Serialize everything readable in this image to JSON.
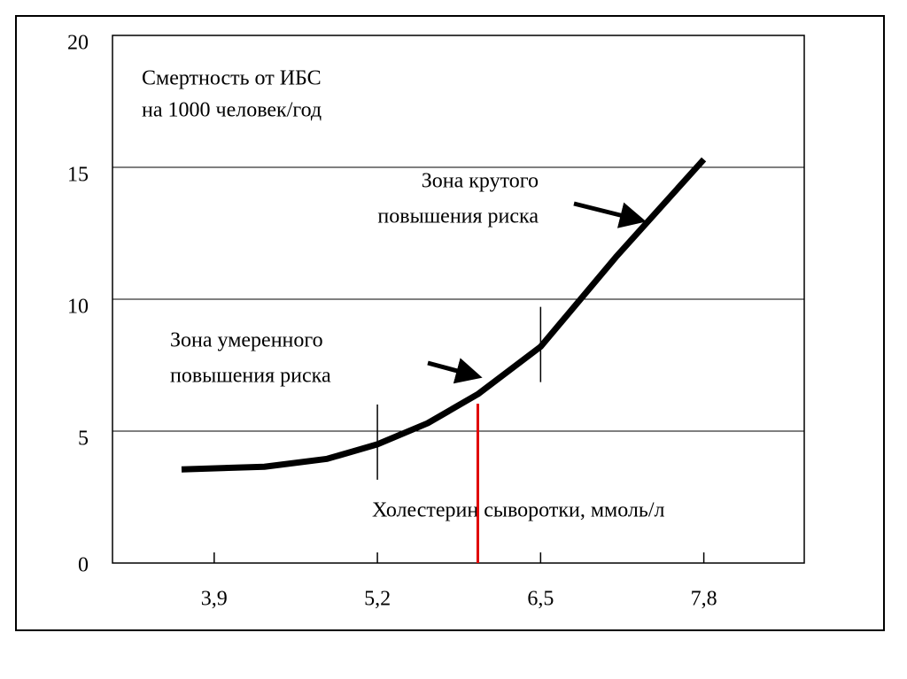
{
  "chart_data": {
    "type": "line",
    "y_label": [
      "Смертность от ИБС",
      "на 1000 человек/год"
    ],
    "x_label": "Холестерин сыворотки,   ммоль/л",
    "annotations": [
      {
        "lines": [
          "Зона крутого",
          "повышения риска"
        ]
      },
      {
        "lines": [
          "Зона умеренного",
          "повышения риска"
        ]
      }
    ],
    "x": [
      3.64,
      4.3,
      4.8,
      5.2,
      5.6,
      6.0,
      6.5,
      7.1,
      7.8
    ],
    "series": [
      {
        "color": "#000000",
        "values": [
          3.55,
          3.65,
          3.95,
          4.5,
          5.3,
          6.4,
          8.2,
          11.6,
          15.3
        ]
      }
    ],
    "zone_bounds": [
      5.2,
      6.5
    ],
    "reference_x": 6.0,
    "reference_color": "#e00000",
    "xlim": [
      3.09,
      8.6
    ],
    "ylim": [
      0,
      20
    ],
    "xticks": [
      {
        "value": 3.9,
        "label": "3,9"
      },
      {
        "value": 5.2,
        "label": "5,2"
      },
      {
        "value": 6.5,
        "label": "6,5"
      },
      {
        "value": 7.8,
        "label": "7,8"
      }
    ],
    "yticks": [
      0,
      5,
      10,
      15,
      20
    ],
    "grid": true
  }
}
